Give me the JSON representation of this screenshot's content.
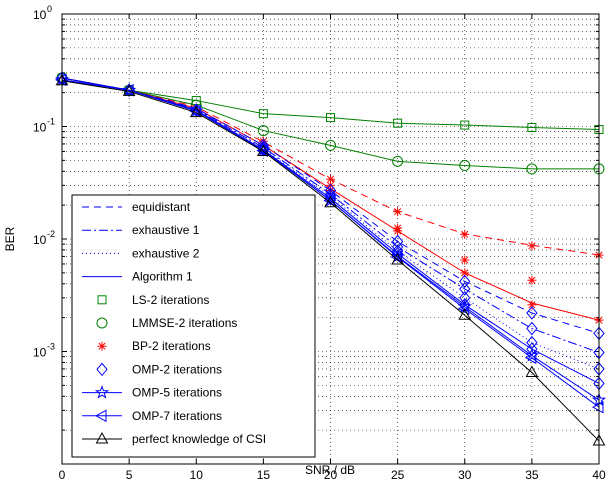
{
  "chart_data": {
    "type": "line",
    "xlabel": "SNR / dB",
    "ylabel": "BER",
    "xlim": [
      0,
      40
    ],
    "ylim": [
      0.0001,
      1
    ],
    "yscale": "log",
    "grid": true,
    "legend_position": "bottom-left",
    "x": [
      0,
      5,
      10,
      15,
      20,
      25,
      30,
      35,
      40
    ],
    "x_tick_labels": [
      "0",
      "5",
      "10",
      "15",
      "20",
      "25",
      "30",
      "35",
      "40"
    ],
    "y_tick_labels": [
      {
        "base": "10",
        "exp": "0",
        "value": 1
      },
      {
        "base": "10",
        "exp": "-1",
        "value": 0.1
      },
      {
        "base": "10",
        "exp": "-2",
        "value": 0.01
      },
      {
        "base": "10",
        "exp": "-3",
        "value": 0.001
      }
    ],
    "groups": [
      {
        "name": "equidistant",
        "dash": "7,5"
      },
      {
        "name": "exhaustive 1",
        "dash": "9,3,2,3"
      },
      {
        "name": "exhaustive 2",
        "dash": "1,3"
      },
      {
        "name": "Algorithm 1",
        "dash": ""
      }
    ],
    "series": [
      {
        "name": "LS-2 iterations",
        "marker": "square",
        "color": "#008000",
        "line": "",
        "values": [
          0.27,
          0.21,
          0.17,
          0.13,
          0.12,
          0.107,
          0.103,
          0.098,
          0.094
        ]
      },
      {
        "name": "LMMSE-2 iterations",
        "marker": "circle",
        "color": "#008000",
        "line": "",
        "values": [
          0.27,
          0.21,
          0.155,
          0.092,
          0.068,
          0.049,
          0.045,
          0.042,
          0.042
        ]
      },
      {
        "name": "BP-2 iterations",
        "marker": "star",
        "color": "#ff0000",
        "lines": [
          {
            "dash": "7,5",
            "values": [
              0.27,
              0.21,
              0.15,
              0.073,
              0.034,
              0.0175,
              0.0111,
              0.0088,
              0.0072
            ]
          },
          {
            "dash": "",
            "values": [
              0.27,
              0.21,
              0.145,
              0.068,
              0.028,
              0.0118,
              0.005,
              0.0027,
              0.0019
            ]
          }
        ],
        "markers": [
          {
            "x": 15,
            "v": 0.074
          },
          {
            "x": 20,
            "v": 0.034
          },
          {
            "x": 20,
            "v": 0.03
          },
          {
            "x": 20,
            "v": 0.027
          },
          {
            "x": 25,
            "v": 0.0175
          },
          {
            "x": 25,
            "v": 0.0125
          },
          {
            "x": 25,
            "v": 0.0118
          },
          {
            "x": 30,
            "v": 0.011
          },
          {
            "x": 30,
            "v": 0.0065
          },
          {
            "x": 30,
            "v": 0.005
          },
          {
            "x": 35,
            "v": 0.0087
          },
          {
            "x": 35,
            "v": 0.0043
          },
          {
            "x": 35,
            "v": 0.0026
          },
          {
            "x": 40,
            "v": 0.0072
          },
          {
            "x": 40,
            "v": 0.0019
          }
        ]
      },
      {
        "name": "OMP-2 iterations",
        "marker": "diamond",
        "color": "#0000ff",
        "lines": [
          {
            "dash": "7,5",
            "values": [
              0.27,
              0.21,
              0.145,
              0.068,
              0.027,
              0.0095,
              0.0042,
              0.0022,
              0.00145
            ]
          },
          {
            "dash": "9,3,2,3",
            "values": [
              0.27,
              0.21,
              0.142,
              0.065,
              0.025,
              0.0085,
              0.0036,
              0.0016,
              0.00098
            ]
          },
          {
            "dash": "1,3",
            "values": [
              0.27,
              0.21,
              0.14,
              0.063,
              0.024,
              0.0078,
              0.003,
              0.0012,
              0.0007
            ]
          },
          {
            "dash": "",
            "values": [
              0.27,
              0.21,
              0.14,
              0.062,
              0.023,
              0.0074,
              0.0026,
              0.00105,
              0.00052
            ]
          }
        ]
      },
      {
        "name": "OMP-5 iterations",
        "marker": "pentagram",
        "color": "#0000ff",
        "line": "",
        "values": [
          0.26,
          0.21,
          0.138,
          0.062,
          0.022,
          0.007,
          0.0025,
          0.00092,
          0.00037
        ]
      },
      {
        "name": "OMP-7 iterations",
        "marker": "triangle-left",
        "color": "#0000ff",
        "line": "",
        "values": [
          0.26,
          0.21,
          0.137,
          0.061,
          0.022,
          0.0069,
          0.0024,
          0.00088,
          0.00032
        ]
      },
      {
        "name": "perfect knowledge of CSI",
        "marker": "triangle-up",
        "color": "#000000",
        "line": "",
        "values": [
          0.255,
          0.205,
          0.133,
          0.06,
          0.021,
          0.0065,
          0.0021,
          0.00065,
          0.00016
        ]
      }
    ]
  }
}
